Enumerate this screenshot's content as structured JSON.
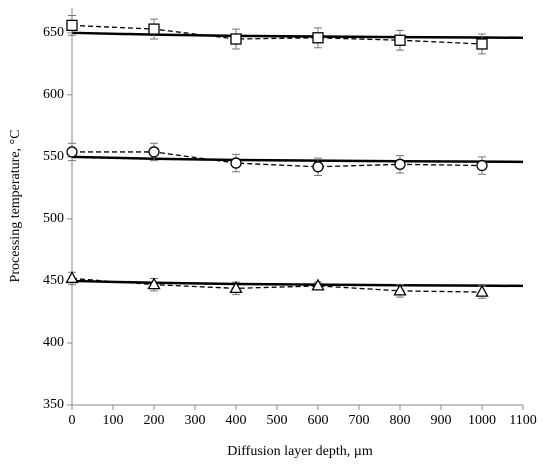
{
  "chart_data": {
    "type": "scatter",
    "xlabel": "Diffusion layer depth, µm",
    "ylabel": "Processing temperature, °C",
    "xlim": [
      0,
      1100
    ],
    "ylim": [
      350,
      670
    ],
    "xticks": [
      0,
      100,
      200,
      300,
      400,
      500,
      600,
      700,
      800,
      900,
      1000,
      1100
    ],
    "yticks": [
      350,
      400,
      450,
      500,
      550,
      600,
      650
    ],
    "color": "#000000",
    "series": [
      {
        "marker": "square",
        "x": [
          0,
          200,
          400,
          600,
          800,
          1000
        ],
        "values": [
          656,
          653,
          645,
          646,
          644,
          641
        ],
        "errors": [
          8,
          8,
          8,
          8,
          8,
          8
        ]
      },
      {
        "marker": "circle",
        "x": [
          0,
          200,
          400,
          600,
          800,
          1000
        ],
        "values": [
          554,
          554,
          545,
          542,
          544,
          543
        ],
        "errors": [
          7,
          7,
          7,
          7,
          7,
          7
        ]
      },
      {
        "marker": "triangle",
        "x": [
          0,
          200,
          400,
          600,
          800,
          1000
        ],
        "values": [
          452,
          447,
          444,
          446,
          442,
          441
        ],
        "errors": [
          5,
          5,
          5,
          3,
          5,
          5
        ]
      }
    ],
    "fits": [
      {
        "x": [
          0,
          200,
          400,
          600,
          800,
          1000,
          1100
        ],
        "values": [
          650,
          648.5,
          647.5,
          647,
          646.5,
          646.2,
          646
        ]
      },
      {
        "x": [
          0,
          200,
          400,
          600,
          800,
          1000,
          1100
        ],
        "values": [
          550,
          548.5,
          547.5,
          547,
          546.5,
          546.2,
          546
        ]
      },
      {
        "x": [
          0,
          200,
          400,
          600,
          800,
          1000,
          1100
        ],
        "values": [
          450,
          448.5,
          447.5,
          447,
          446.5,
          446.2,
          446
        ]
      }
    ]
  }
}
